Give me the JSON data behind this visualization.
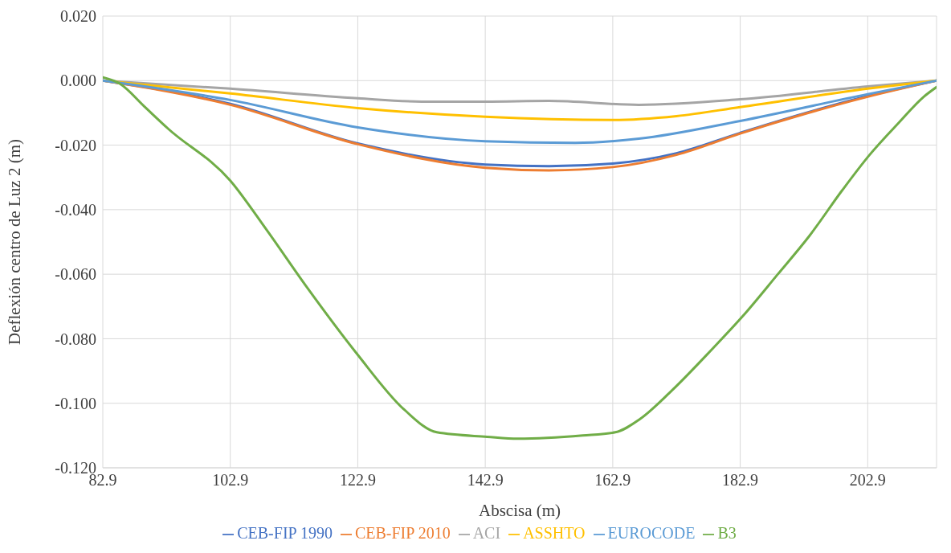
{
  "chart_data": {
    "type": "line",
    "xlabel": "Abscisa (m)",
    "ylabel": "Deflexión centro de Luz 2 (m)",
    "xlim": [
      82.9,
      213.7
    ],
    "xticks": [
      82.9,
      102.9,
      122.9,
      142.9,
      162.9,
      182.9,
      202.9
    ],
    "ylim": [
      -0.12,
      0.02
    ],
    "yticks": [
      {
        "value": 0.02,
        "label": "0.020"
      },
      {
        "value": 0,
        "label": "0.000"
      },
      {
        "value": -0.02,
        "label": "-0.020"
      },
      {
        "value": -0.04,
        "label": "-0.040"
      },
      {
        "value": -0.06,
        "label": "-0.060"
      },
      {
        "value": -0.08,
        "label": "-0.080"
      },
      {
        "value": -0.1,
        "label": "-0.100"
      },
      {
        "value": -0.12,
        "label": "-0.120"
      }
    ],
    "grid": true,
    "legend": "bottom",
    "marker": "none",
    "line_style": "solid",
    "series": [
      {
        "name": "CEB-FIP 1990",
        "color": "#4472c4",
        "x": [
          82.9,
          102.9,
          122.9,
          142.9,
          152.9,
          162.9,
          172.9,
          182.9,
          192.9,
          202.9,
          213.7
        ],
        "values": [
          0,
          -0.0072,
          -0.0195,
          -0.026,
          -0.0265,
          -0.0257,
          -0.0225,
          -0.0162,
          -0.0102,
          -0.0048,
          0
        ]
      },
      {
        "name": "CEB-FIP 2010",
        "color": "#ed7d31",
        "x": [
          82.9,
          102.9,
          122.9,
          142.9,
          152.9,
          162.9,
          172.9,
          182.9,
          192.9,
          202.9,
          213.7
        ],
        "values": [
          0,
          -0.0075,
          -0.0197,
          -0.027,
          -0.0278,
          -0.0268,
          -0.023,
          -0.0164,
          -0.0104,
          -0.005,
          0
        ]
      },
      {
        "name": "ACI",
        "color": "#a5a5a5",
        "x": [
          82.9,
          102.9,
          122.9,
          132.9,
          142.9,
          152.9,
          167,
          182.9,
          202.9,
          213.7
        ],
        "values": [
          0,
          -0.0025,
          -0.0055,
          -0.0065,
          -0.0065,
          -0.0063,
          -0.0075,
          -0.0058,
          -0.0018,
          0
        ]
      },
      {
        "name": "ASSHTO",
        "color": "#ffc000",
        "x": [
          82.9,
          102.9,
          122.9,
          142.9,
          162.9,
          172.9,
          182.9,
          202.9,
          213.7
        ],
        "values": [
          0,
          -0.004,
          -0.0085,
          -0.0112,
          -0.0122,
          -0.011,
          -0.0082,
          -0.0025,
          0
        ]
      },
      {
        "name": "EUROCODE",
        "color": "#5b9bd5",
        "x": [
          82.9,
          102.9,
          122.9,
          142.9,
          157,
          167,
          182.9,
          202.9,
          213.7
        ],
        "values": [
          0,
          -0.006,
          -0.0145,
          -0.0188,
          -0.0193,
          -0.018,
          -0.0125,
          -0.0042,
          0
        ]
      },
      {
        "name": "B3",
        "color": "#70ad47",
        "x": [
          82.9,
          85.6,
          89.4,
          93.2,
          102.9,
          108.5,
          114.9,
          122.9,
          130.2,
          135.3,
          143.2,
          148.0,
          158.2,
          163.3,
          167.1,
          172.2,
          178.6,
          183.3,
          188.8,
          193.8,
          198.9,
          203.2,
          207.8,
          211.7,
          213.7
        ],
        "values": [
          0.001,
          -0.001,
          -0.008,
          -0.015,
          -0.031,
          -0.046,
          -0.064,
          -0.085,
          -0.102,
          -0.109,
          -0.1104,
          -0.111,
          -0.11,
          -0.109,
          -0.105,
          -0.096,
          -0.083,
          -0.073,
          -0.06,
          -0.048,
          -0.034,
          -0.023,
          -0.013,
          -0.005,
          -0.002
        ]
      }
    ]
  }
}
